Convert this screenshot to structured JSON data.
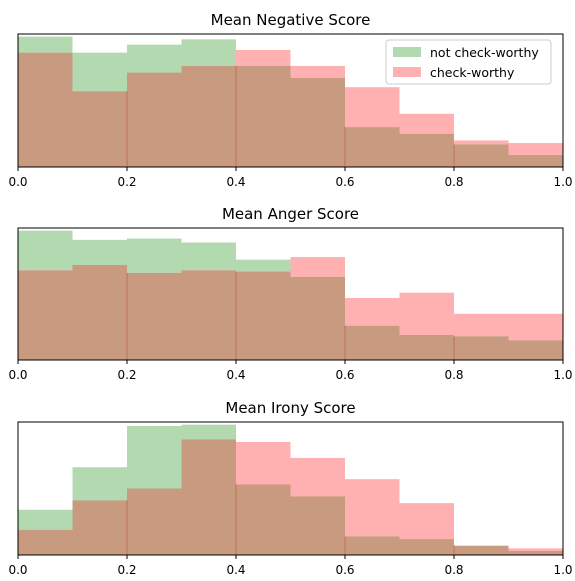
{
  "chart_data": [
    {
      "type": "histogram",
      "title": "Mean Negative Score",
      "xlim": [
        0,
        1
      ],
      "x_ticks": [
        "0.0",
        "0.2",
        "0.4",
        "0.6",
        "0.8",
        "1.0"
      ],
      "bin_edges": [
        0,
        0.1,
        0.2,
        0.3,
        0.4,
        0.5,
        0.6,
        0.7,
        0.8,
        0.9,
        1.0
      ],
      "legend": {
        "position": "top-right"
      },
      "series": [
        {
          "name": "not check-worthy",
          "color": "#2ca02c",
          "values": [
            0.98,
            0.86,
            0.92,
            0.96,
            0.76,
            0.67,
            0.3,
            0.25,
            0.17,
            0.09
          ]
        },
        {
          "name": "check-worthy",
          "color": "#ff7f7f",
          "values": [
            0.86,
            0.57,
            0.71,
            0.76,
            0.88,
            0.76,
            0.6,
            0.4,
            0.2,
            0.18
          ]
        }
      ]
    },
    {
      "type": "histogram",
      "title": "Mean Anger Score",
      "xlim": [
        0,
        1
      ],
      "x_ticks": [
        "0.0",
        "0.2",
        "0.4",
        "0.6",
        "0.8",
        "1.0"
      ],
      "bin_edges": [
        0,
        0.1,
        0.2,
        0.3,
        0.4,
        0.5,
        0.6,
        0.7,
        0.8,
        0.9,
        1.0
      ],
      "series": [
        {
          "name": "not check-worthy",
          "color": "#2ca02c",
          "values": [
            0.98,
            0.91,
            0.92,
            0.89,
            0.76,
            0.63,
            0.26,
            0.19,
            0.18,
            0.15
          ]
        },
        {
          "name": "check-worthy",
          "color": "#ff7f7f",
          "values": [
            0.68,
            0.72,
            0.66,
            0.68,
            0.67,
            0.78,
            0.47,
            0.51,
            0.35,
            0.35
          ]
        }
      ]
    },
    {
      "type": "histogram",
      "title": "Mean Irony Score",
      "xlim": [
        0,
        1
      ],
      "x_ticks": [
        "0.0",
        "0.2",
        "0.4",
        "0.6",
        "0.8",
        "1.0"
      ],
      "bin_edges": [
        0,
        0.1,
        0.2,
        0.3,
        0.4,
        0.5,
        0.6,
        0.7,
        0.8,
        0.9,
        1.0
      ],
      "series": [
        {
          "name": "not check-worthy",
          "color": "#2ca02c",
          "values": [
            0.34,
            0.66,
            0.97,
            0.98,
            0.53,
            0.44,
            0.14,
            0.12,
            0.07,
            0.03
          ]
        },
        {
          "name": "check-worthy",
          "color": "#ff7f7f",
          "values": [
            0.19,
            0.41,
            0.5,
            0.87,
            0.85,
            0.73,
            0.57,
            0.39,
            0.07,
            0.05
          ]
        }
      ]
    }
  ]
}
